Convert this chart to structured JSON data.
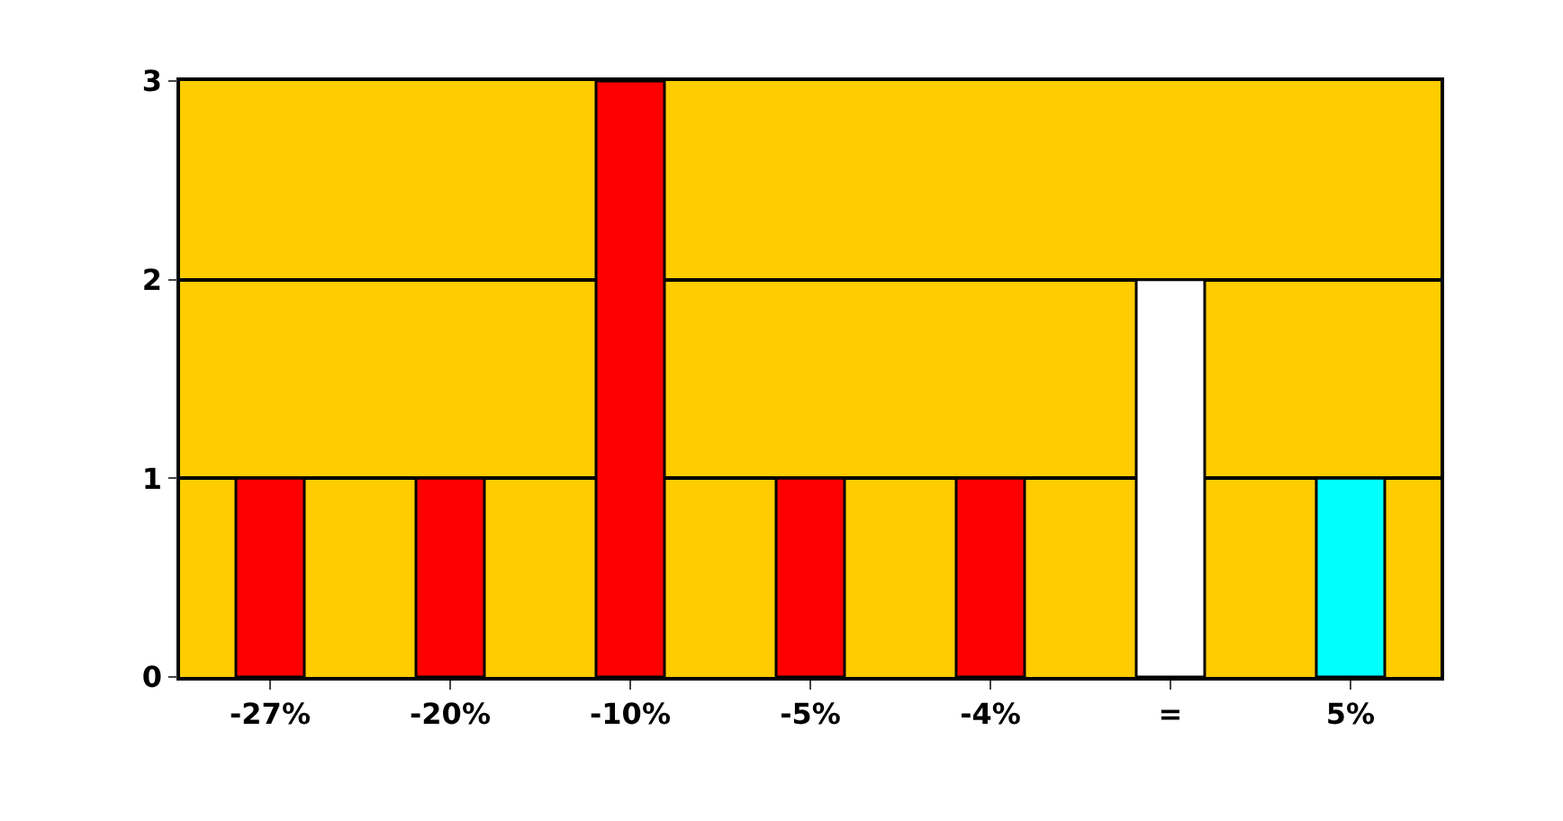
{
  "chart_data": {
    "type": "bar",
    "categories": [
      "-27%",
      "-20%",
      "-10%",
      "-5%",
      "-4%",
      "=",
      "5%"
    ],
    "values": [
      1,
      1,
      3,
      1,
      1,
      2,
      1
    ],
    "colors": [
      "#ff0000",
      "#ff0000",
      "#ff0000",
      "#ff0000",
      "#ff0000",
      "#ffffff",
      "#00ffff"
    ],
    "ylim": [
      0,
      3
    ],
    "yticks": [
      0,
      1,
      2,
      3
    ],
    "grid": "y"
  }
}
